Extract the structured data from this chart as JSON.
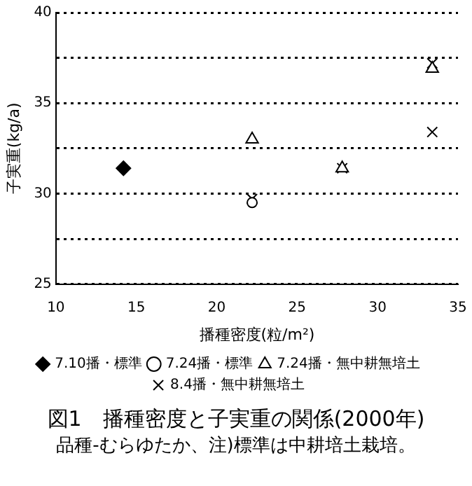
{
  "chart_data": {
    "type": "scatter",
    "title": "図1　播種密度と子実重の関係(2000年)",
    "xlabel": "播種密度(粒/m²)",
    "ylabel": "子実重(kg/a)",
    "annotations": [
      "品種-むらゆたか、注)標準は中耕培土栽培。"
    ],
    "series": [
      {
        "name": "7.10播・標準",
        "color": "#000000",
        "marker": "diamond",
        "x": [
          14.2
        ],
        "values": [
          31.4
        ]
      },
      {
        "name": "7.24播・標準",
        "color": "#000000",
        "marker": "circle",
        "x": [
          22.2
        ],
        "values": [
          29.5
        ]
      },
      {
        "name": "7.24播・無中耕無培土",
        "color": "#000000",
        "marker": "triangle",
        "x": [
          22.2,
          27.8,
          33.4
        ],
        "values": [
          33.0,
          31.4,
          36.9
        ]
      },
      {
        "name": "8.4播・無中耕無培土",
        "color": "#000000",
        "marker": "cross",
        "x": [
          22.2,
          27.8,
          33.4,
          33.4
        ],
        "values": [
          29.7,
          31.4,
          33.4,
          37.2
        ]
      }
    ],
    "xlim": [
      10,
      35
    ],
    "xticks": [
      10,
      15,
      20,
      25,
      30,
      35
    ],
    "ylim": [
      25,
      40
    ],
    "yticks": [
      25,
      {
        "value": 27.5,
        "label": null
      },
      30,
      {
        "value": 32.5,
        "label": null
      },
      35,
      {
        "value": 37.5,
        "label": null
      },
      40
    ],
    "grid": "y",
    "legend": "bottom",
    "line_style": "dotted"
  }
}
